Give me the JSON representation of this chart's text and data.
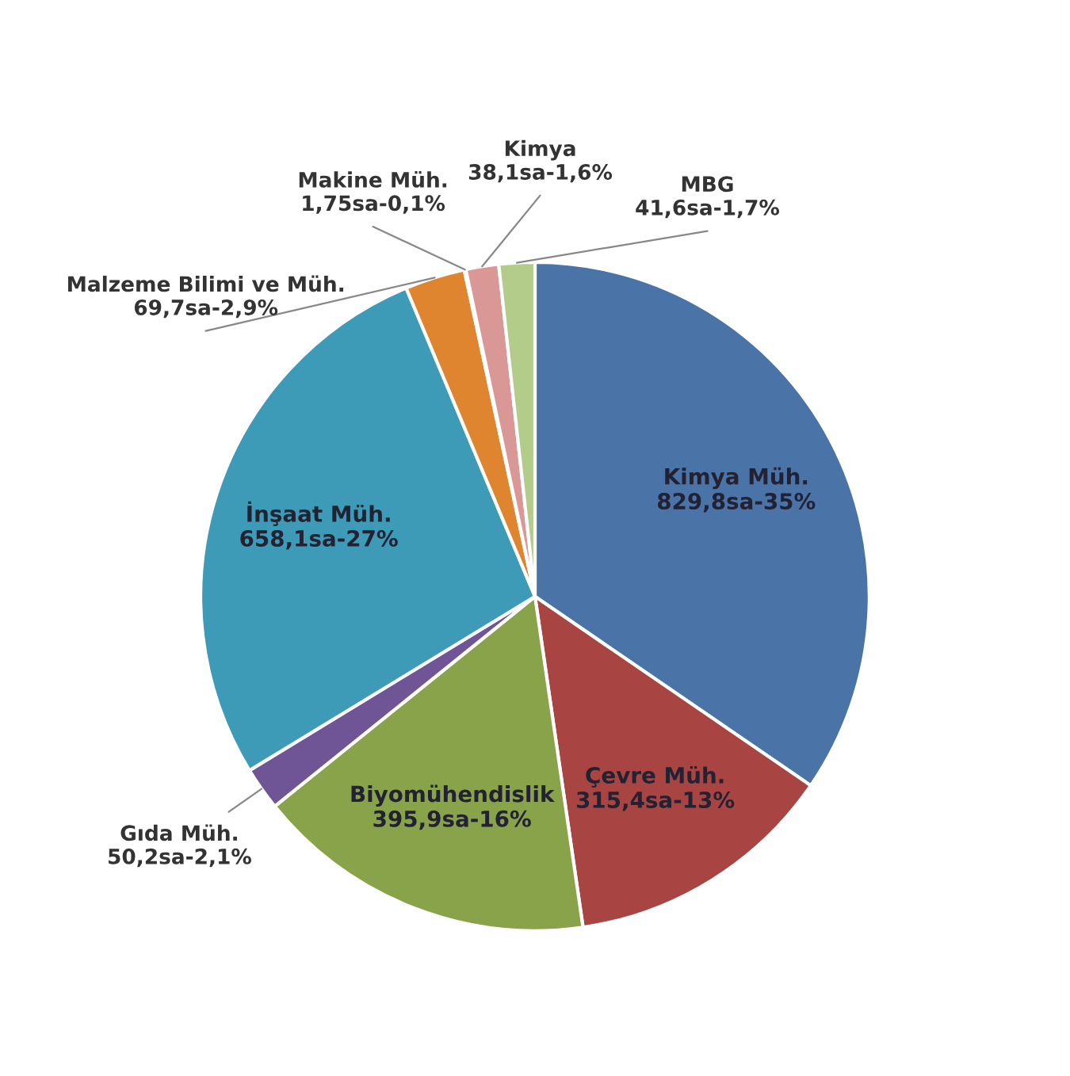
{
  "chart_data": {
    "type": "pie",
    "categories": [
      "Kimya Müh.",
      "Çevre Müh.",
      "Biyomühendislik",
      "Gıda Müh.",
      "İnşaat Müh.",
      "Malzeme Bilimi ve Müh.",
      "Makine Müh.",
      "Kimya",
      "MBG"
    ],
    "values": [
      829.8,
      315.4,
      395.9,
      50.2,
      658.1,
      69.7,
      1.75,
      38.1,
      41.6
    ],
    "value_labels": [
      "829,8sa-35%",
      "315,4sa-13%",
      "395,9sa-16%",
      "50,2sa-2,1%",
      "658,1sa-27%",
      "69,7sa-2,9%",
      "1,75sa-0,1%",
      "38,1sa-1,6%",
      "41,6sa-1,7%"
    ],
    "colors": [
      "#4a74a8",
      "#a84542",
      "#88a34a",
      "#6f5596",
      "#3d9bb8",
      "#e0852f",
      "#8fa8cf",
      "#d99795",
      "#b3cc8a"
    ],
    "legend": false
  }
}
